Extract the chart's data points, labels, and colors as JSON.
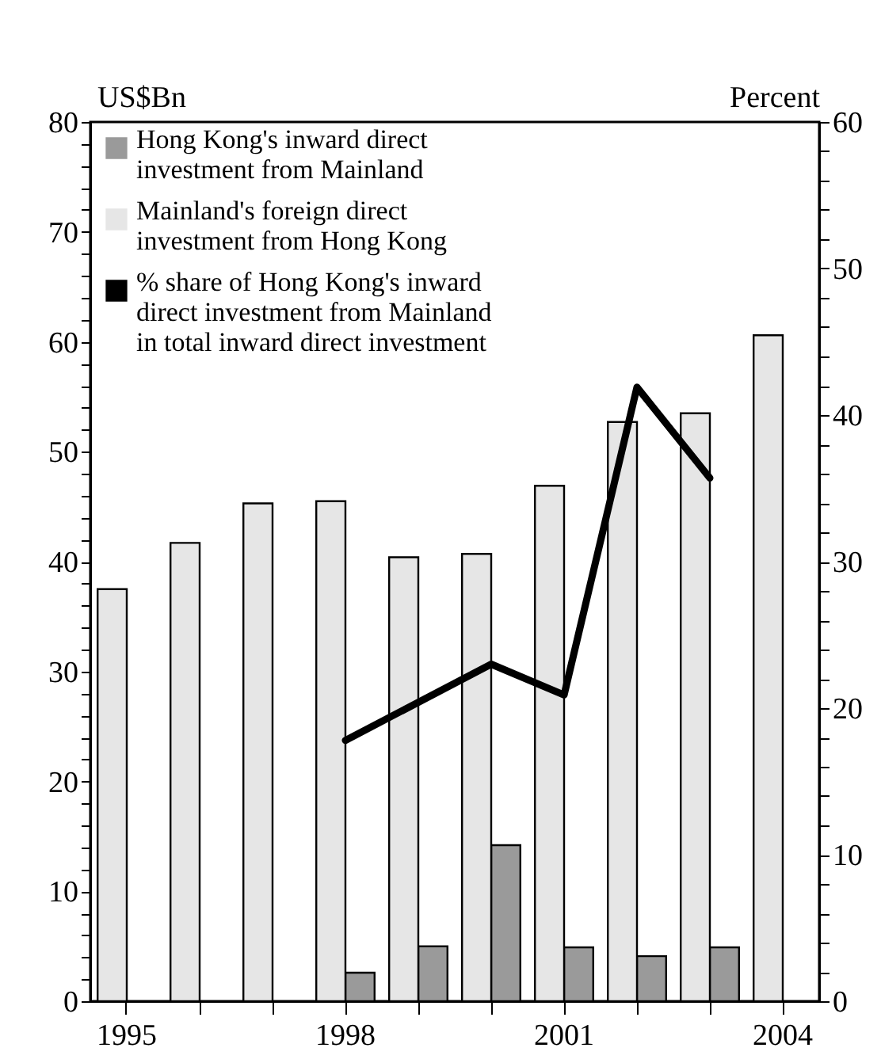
{
  "chart_data": {
    "type": "bar",
    "categories": [
      "1995",
      null,
      null,
      "1998",
      null,
      null,
      "2001",
      null,
      null,
      "2004"
    ],
    "ylabel": "US$Bn",
    "y2label": "Percent",
    "ylim": [
      0,
      80
    ],
    "yticks": [
      0,
      {
        "value": 2,
        "label": null
      },
      {
        "value": 4,
        "label": null
      },
      {
        "value": 6,
        "label": null
      },
      {
        "value": 8,
        "label": null
      },
      10,
      {
        "value": 12,
        "label": null
      },
      {
        "value": 14,
        "label": null
      },
      {
        "value": 16,
        "label": null
      },
      {
        "value": 18,
        "label": null
      },
      20,
      {
        "value": 22,
        "label": null
      },
      {
        "value": 24,
        "label": null
      },
      {
        "value": 26,
        "label": null
      },
      {
        "value": 28,
        "label": null
      },
      30,
      {
        "value": 32,
        "label": null
      },
      {
        "value": 34,
        "label": null
      },
      {
        "value": 36,
        "label": null
      },
      {
        "value": 38,
        "label": null
      },
      40,
      {
        "value": 42,
        "label": null
      },
      {
        "value": 44,
        "label": null
      },
      {
        "value": 46,
        "label": null
      },
      {
        "value": 48,
        "label": null
      },
      50,
      {
        "value": 52,
        "label": null
      },
      {
        "value": 54,
        "label": null
      },
      {
        "value": 56,
        "label": null
      },
      {
        "value": 58,
        "label": null
      },
      60,
      {
        "value": 62,
        "label": null
      },
      {
        "value": 64,
        "label": null
      },
      {
        "value": 66,
        "label": null
      },
      {
        "value": 68,
        "label": null
      },
      70,
      {
        "value": 72,
        "label": null
      },
      {
        "value": 74,
        "label": null
      },
      {
        "value": 76,
        "label": null
      },
      {
        "value": 78,
        "label": null
      },
      80
    ],
    "y2lim": [
      0,
      60
    ],
    "y2ticks": [
      0,
      {
        "value": 2,
        "label": null
      },
      {
        "value": 4,
        "label": null
      },
      {
        "value": 6,
        "label": null
      },
      {
        "value": 8,
        "label": null
      },
      10,
      {
        "value": 12,
        "label": null
      },
      {
        "value": 14,
        "label": null
      },
      {
        "value": 16,
        "label": null
      },
      {
        "value": 18,
        "label": null
      },
      20,
      {
        "value": 22,
        "label": null
      },
      {
        "value": 24,
        "label": null
      },
      {
        "value": 26,
        "label": null
      },
      {
        "value": 28,
        "label": null
      },
      30,
      {
        "value": 32,
        "label": null
      },
      {
        "value": 34,
        "label": null
      },
      {
        "value": 36,
        "label": null
      },
      {
        "value": 38,
        "label": null
      },
      40,
      {
        "value": 42,
        "label": null
      },
      {
        "value": 44,
        "label": null
      },
      {
        "value": 46,
        "label": null
      },
      {
        "value": 48,
        "label": null
      },
      50,
      {
        "value": 52,
        "label": null
      },
      {
        "value": 54,
        "label": null
      },
      {
        "value": 56,
        "label": null
      },
      {
        "value": 58,
        "label": null
      },
      60
    ],
    "grid": false,
    "legend": "top left",
    "series": [
      {
        "name": "Hong Kong's inward direct investment from Mainland",
        "color": "#9a9a9a",
        "values": [
          null,
          null,
          null,
          2.6,
          5.0,
          14.2,
          4.9,
          4.1,
          4.9,
          null
        ]
      },
      {
        "name": "Mainland's foreign direct investment from Hong Kong",
        "color": "#e6e6e6",
        "values": [
          37.5,
          41.7,
          45.3,
          45.5,
          40.4,
          40.7,
          46.9,
          52.7,
          53.5,
          60.6
        ]
      },
      {
        "name": "% share of Hong Kong's inward direct investment from Mainland in total inward direct investment",
        "type": "line",
        "axis": "y2",
        "color": "#000000",
        "values": [
          null,
          null,
          null,
          17.8,
          null,
          23.0,
          20.9,
          41.9,
          35.7,
          null
        ]
      }
    ]
  }
}
